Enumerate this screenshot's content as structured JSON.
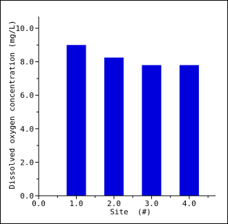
{
  "chart_data": {
    "type": "bar",
    "title": "",
    "xlabel": "Site  (#)",
    "ylabel": "Dissolved oxygen concentration  (mg/L)",
    "x": [
      1.0,
      2.0,
      3.0,
      4.0
    ],
    "values": [
      9.0,
      8.25,
      7.8,
      7.8
    ],
    "xlim": [
      0.0,
      4.7
    ],
    "ylim": [
      0.0,
      10.7
    ],
    "x_ticks": [
      "0.0",
      "1.0",
      "2.0",
      "3.0",
      "4.0"
    ],
    "y_ticks": [
      "0.0",
      "2.0",
      "4.0",
      "6.0",
      "8.0",
      "10.0"
    ],
    "bar_color": "#0000dd",
    "grid": false,
    "legend": "none"
  }
}
